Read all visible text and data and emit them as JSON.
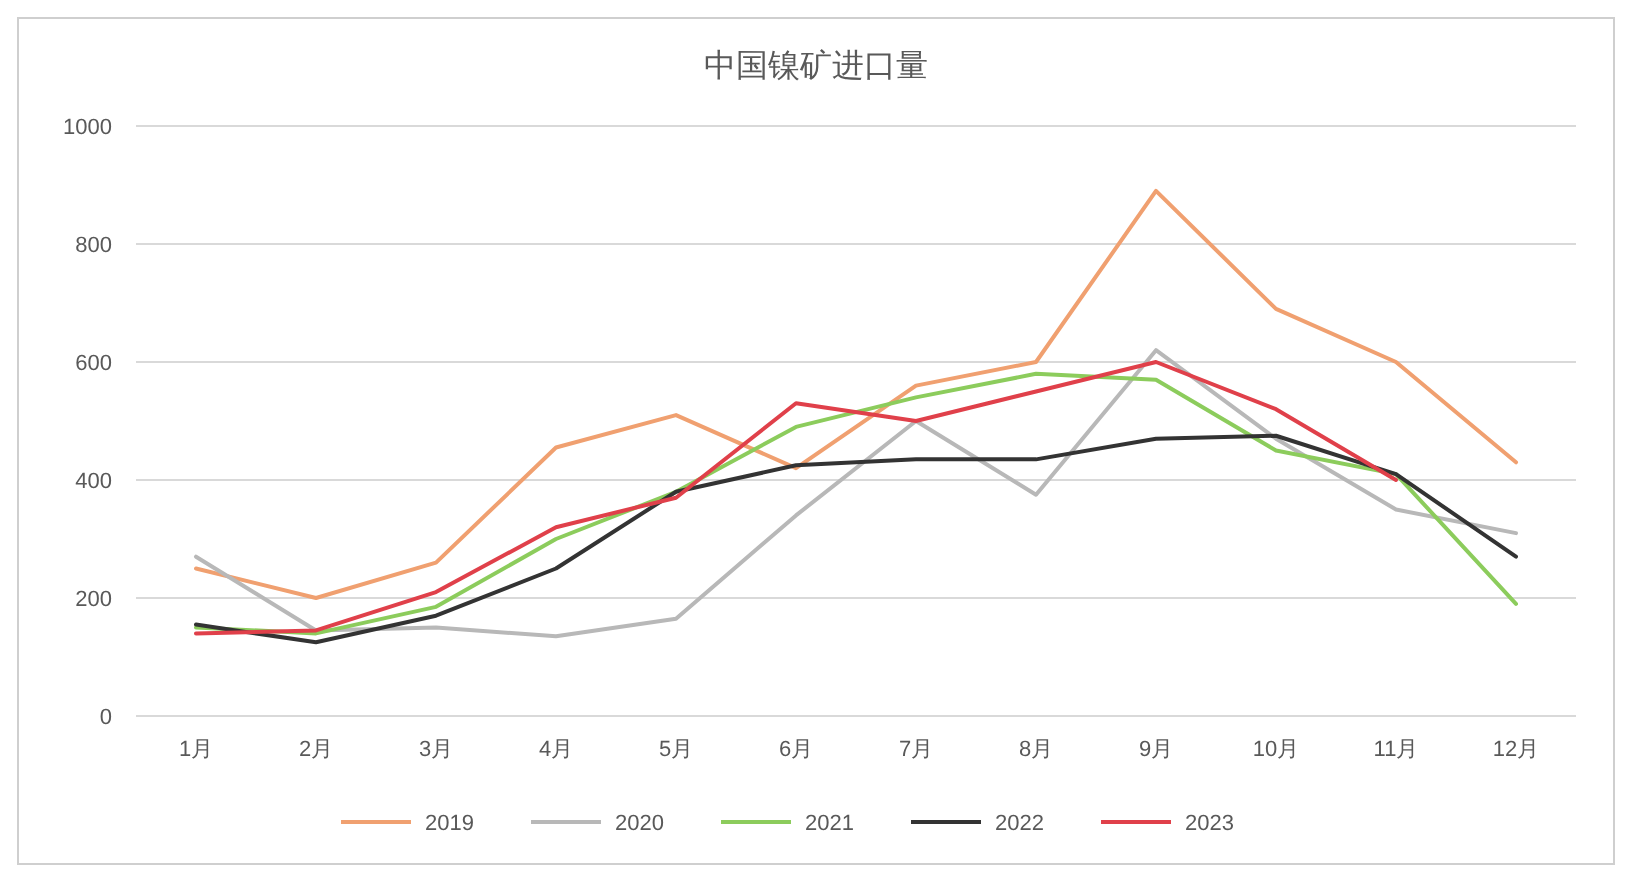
{
  "chart_data": {
    "type": "line",
    "title": "中国镍矿进口量",
    "categories": [
      "1月",
      "2月",
      "3月",
      "4月",
      "5月",
      "6月",
      "7月",
      "8月",
      "9月",
      "10月",
      "11月",
      "12月"
    ],
    "series": [
      {
        "name": "2019",
        "color": "#f0a070",
        "values": [
          250,
          200,
          260,
          455,
          510,
          420,
          560,
          600,
          890,
          690,
          600,
          430
        ]
      },
      {
        "name": "2020",
        "color": "#b8b8b8",
        "values": [
          270,
          145,
          150,
          135,
          165,
          340,
          500,
          375,
          620,
          470,
          350,
          310
        ]
      },
      {
        "name": "2021",
        "color": "#8ccc5c",
        "values": [
          150,
          140,
          185,
          300,
          380,
          490,
          540,
          580,
          570,
          450,
          410,
          190
        ]
      },
      {
        "name": "2022",
        "color": "#333333",
        "values": [
          155,
          125,
          170,
          250,
          380,
          425,
          435,
          435,
          470,
          475,
          410,
          270
        ]
      },
      {
        "name": "2023",
        "color": "#e0404a",
        "values": [
          140,
          145,
          210,
          320,
          370,
          530,
          500,
          550,
          600,
          520,
          400,
          null
        ]
      }
    ],
    "ylim": [
      0,
      1000
    ],
    "yticks": [
      0,
      200,
      400,
      600,
      800,
      1000
    ],
    "grid": "y",
    "legend": "bottom",
    "marker": "none",
    "line_style": "solid"
  }
}
